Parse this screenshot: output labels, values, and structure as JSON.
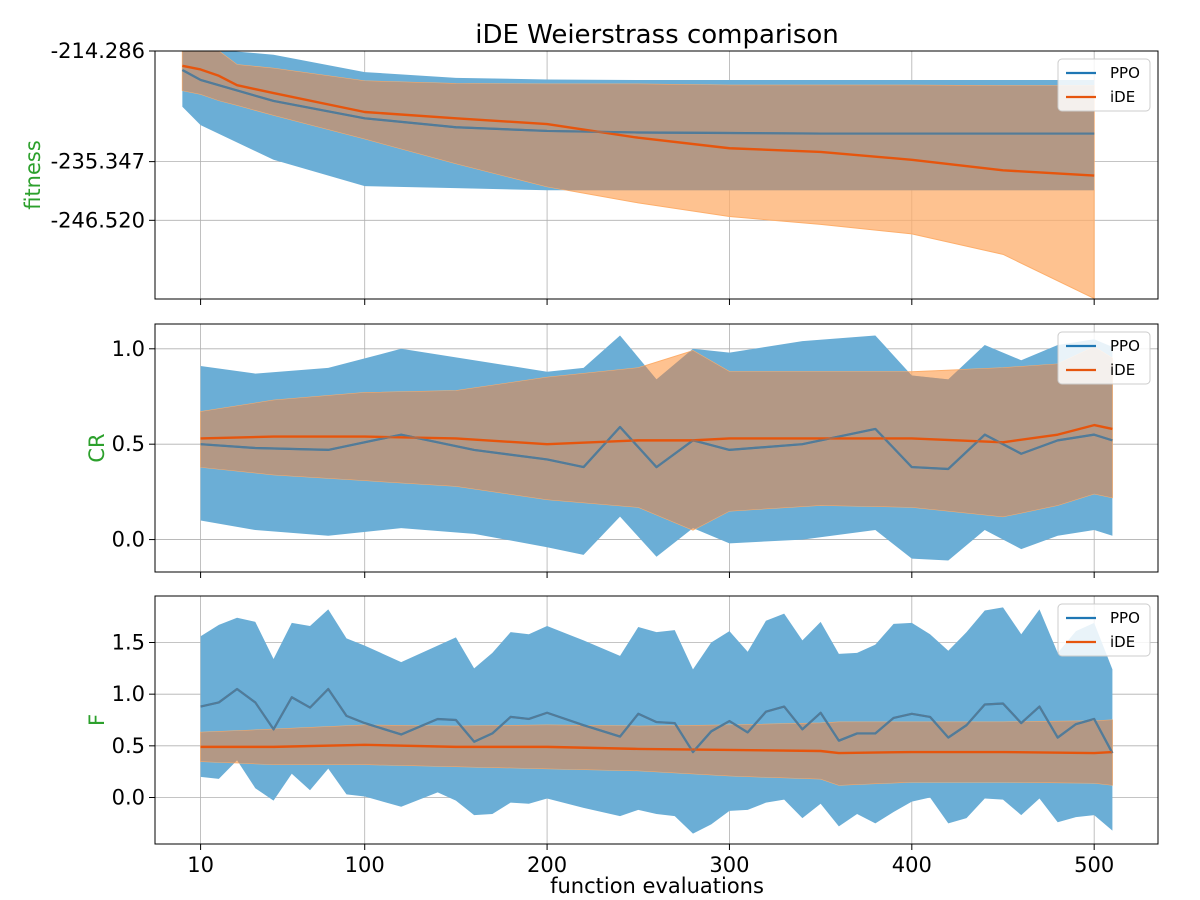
{
  "title": "iDE Weierstrass comparison",
  "xlabel": "function evaluations",
  "ylabel_color": "#2ca02c",
  "colors": {
    "PPO": "#1f77b4",
    "iDE": "#e6550d",
    "PPO_band": "#6baed6",
    "iDE_band": "#fdae6b",
    "overlap_band": "#b39885"
  },
  "x_axis": {
    "ticks": [
      10,
      100,
      200,
      300,
      400,
      500
    ],
    "tick_labels": [
      "10",
      "100",
      "200",
      "300",
      "400",
      "500"
    ]
  },
  "chart_data": [
    {
      "type": "line",
      "panel": "fitness",
      "ylabel": "fitness",
      "xlim": [
        -15,
        535
      ],
      "ylim": [
        -261.5,
        -214.286
      ],
      "yticks": [
        -214.286,
        -235.347,
        -246.52
      ],
      "ytick_labels": [
        "-214.286",
        "-235.347",
        "-246.520"
      ],
      "grid": true,
      "legend": "top-right",
      "series": [
        {
          "name": "PPO",
          "x": [
            0,
            10,
            50,
            100,
            150,
            200,
            250,
            300,
            350,
            400,
            450,
            500
          ],
          "mean": [
            -217.9,
            -219.8,
            -223.8,
            -227.1,
            -228.8,
            -229.5,
            -229.8,
            -229.9,
            -230.0,
            -230.0,
            -230.0,
            -230.0
          ],
          "lower": [
            -224.9,
            -228.4,
            -235.0,
            -240.0,
            -240.4,
            -240.8,
            -240.8,
            -240.8,
            -240.8,
            -240.8,
            -240.8,
            -240.8
          ],
          "upper": [
            -213.7,
            -213.8,
            -215.0,
            -218.3,
            -219.4,
            -219.7,
            -219.8,
            -219.8,
            -219.8,
            -219.8,
            -219.8,
            -219.8
          ]
        },
        {
          "name": "iDE",
          "x": [
            0,
            10,
            20,
            30,
            50,
            100,
            150,
            200,
            250,
            300,
            350,
            400,
            450,
            500
          ],
          "mean": [
            -217.1,
            -217.8,
            -219.0,
            -220.8,
            -222.3,
            -225.9,
            -227.1,
            -228.2,
            -230.8,
            -232.8,
            -233.5,
            -235.0,
            -237.0,
            -238.0
          ],
          "lower": [
            -221.8,
            -222.5,
            -223.7,
            -224.6,
            -226.5,
            -231.0,
            -235.7,
            -240.1,
            -243.2,
            -245.8,
            -247.3,
            -249.1,
            -253.0,
            -261.4
          ],
          "upper": [
            -212.4,
            -213.1,
            -214.3,
            -216.9,
            -217.6,
            -220.0,
            -220.5,
            -220.6,
            -220.6,
            -220.8,
            -220.8,
            -220.8,
            -220.9,
            -220.9
          ]
        }
      ]
    },
    {
      "type": "line",
      "panel": "CR",
      "ylabel": "CR",
      "xlim": [
        -15,
        535
      ],
      "ylim": [
        -0.17,
        1.13
      ],
      "yticks": [
        0.0,
        0.5,
        1.0
      ],
      "ytick_labels": [
        "0.0",
        "0.5",
        "1.0"
      ],
      "grid": true,
      "legend": "top-right",
      "series": [
        {
          "name": "PPO",
          "x": [
            10,
            40,
            80,
            120,
            160,
            200,
            220,
            240,
            260,
            280,
            300,
            340,
            380,
            400,
            420,
            440,
            460,
            480,
            500,
            510
          ],
          "mean": [
            0.5,
            0.48,
            0.47,
            0.55,
            0.47,
            0.42,
            0.38,
            0.59,
            0.38,
            0.52,
            0.47,
            0.5,
            0.58,
            0.38,
            0.37,
            0.55,
            0.45,
            0.52,
            0.55,
            0.52
          ],
          "lower": [
            0.1,
            0.05,
            0.02,
            0.06,
            0.03,
            -0.04,
            -0.08,
            0.12,
            -0.09,
            0.06,
            -0.02,
            0.0,
            0.05,
            -0.1,
            -0.11,
            0.05,
            -0.05,
            0.02,
            0.05,
            0.02
          ],
          "upper": [
            0.91,
            0.87,
            0.9,
            1.0,
            0.94,
            0.88,
            0.9,
            1.07,
            0.84,
            1.0,
            0.98,
            1.04,
            1.07,
            0.86,
            0.84,
            1.02,
            0.94,
            1.02,
            1.05,
            1.01
          ]
        },
        {
          "name": "iDE",
          "x": [
            10,
            50,
            100,
            150,
            200,
            250,
            280,
            300,
            350,
            400,
            450,
            480,
            500,
            510
          ],
          "mean": [
            0.53,
            0.54,
            0.54,
            0.53,
            0.5,
            0.52,
            0.52,
            0.53,
            0.53,
            0.53,
            0.51,
            0.55,
            0.6,
            0.58
          ],
          "lower": [
            0.38,
            0.34,
            0.31,
            0.28,
            0.21,
            0.17,
            0.05,
            0.15,
            0.18,
            0.17,
            0.12,
            0.18,
            0.24,
            0.22
          ],
          "upper": [
            0.67,
            0.73,
            0.77,
            0.78,
            0.85,
            0.9,
            0.99,
            0.88,
            0.88,
            0.88,
            0.9,
            0.92,
            1.01,
            0.95
          ]
        }
      ]
    },
    {
      "type": "line",
      "panel": "F",
      "ylabel": "F",
      "xlim": [
        -15,
        535
      ],
      "ylim": [
        -0.45,
        1.95
      ],
      "yticks": [
        0.0,
        0.5,
        1.0,
        1.5
      ],
      "ytick_labels": [
        "0.0",
        "0.5",
        "1.0",
        "1.5"
      ],
      "grid": true,
      "legend": "top-right",
      "series": [
        {
          "name": "PPO",
          "x": [
            10,
            20,
            30,
            40,
            50,
            60,
            70,
            80,
            90,
            100,
            120,
            140,
            150,
            160,
            170,
            180,
            190,
            200,
            220,
            240,
            250,
            260,
            270,
            280,
            290,
            300,
            310,
            320,
            330,
            340,
            350,
            360,
            370,
            380,
            390,
            400,
            410,
            420,
            430,
            440,
            450,
            460,
            470,
            480,
            490,
            500,
            510
          ],
          "mean": [
            0.88,
            0.92,
            1.05,
            0.92,
            0.66,
            0.97,
            0.87,
            1.05,
            0.79,
            0.72,
            0.61,
            0.76,
            0.75,
            0.54,
            0.62,
            0.78,
            0.76,
            0.82,
            0.7,
            0.59,
            0.81,
            0.73,
            0.72,
            0.44,
            0.64,
            0.74,
            0.63,
            0.83,
            0.88,
            0.66,
            0.82,
            0.55,
            0.62,
            0.62,
            0.77,
            0.81,
            0.78,
            0.58,
            0.7,
            0.9,
            0.91,
            0.72,
            0.88,
            0.58,
            0.71,
            0.76,
            0.43
          ],
          "lower": [
            0.2,
            0.18,
            0.36,
            0.09,
            -0.03,
            0.23,
            0.07,
            0.28,
            0.03,
            0.01,
            -0.09,
            0.05,
            -0.03,
            -0.17,
            -0.16,
            -0.05,
            -0.06,
            -0.01,
            -0.1,
            -0.18,
            -0.12,
            -0.16,
            -0.18,
            -0.35,
            -0.26,
            -0.13,
            -0.12,
            -0.05,
            -0.02,
            -0.2,
            -0.06,
            -0.28,
            -0.16,
            -0.25,
            -0.14,
            -0.04,
            0.0,
            -0.25,
            -0.2,
            -0.01,
            -0.02,
            -0.17,
            -0.01,
            -0.24,
            -0.19,
            -0.17,
            -0.32
          ],
          "upper": [
            1.56,
            1.67,
            1.74,
            1.7,
            1.34,
            1.69,
            1.66,
            1.82,
            1.54,
            1.47,
            1.31,
            1.47,
            1.55,
            1.25,
            1.4,
            1.6,
            1.58,
            1.66,
            1.52,
            1.37,
            1.65,
            1.6,
            1.62,
            1.24,
            1.5,
            1.61,
            1.41,
            1.71,
            1.78,
            1.52,
            1.7,
            1.39,
            1.4,
            1.48,
            1.68,
            1.69,
            1.58,
            1.42,
            1.6,
            1.81,
            1.84,
            1.58,
            1.82,
            1.4,
            1.61,
            1.69,
            1.24
          ]
        },
        {
          "name": "iDE",
          "x": [
            10,
            50,
            100,
            150,
            200,
            250,
            300,
            350,
            360,
            400,
            450,
            500,
            510
          ],
          "mean": [
            0.49,
            0.49,
            0.51,
            0.49,
            0.49,
            0.47,
            0.46,
            0.45,
            0.43,
            0.44,
            0.44,
            0.43,
            0.44
          ],
          "lower": [
            0.35,
            0.32,
            0.32,
            0.3,
            0.28,
            0.26,
            0.21,
            0.18,
            0.12,
            0.15,
            0.15,
            0.14,
            0.12
          ],
          "upper": [
            0.63,
            0.66,
            0.7,
            0.69,
            0.7,
            0.69,
            0.7,
            0.72,
            0.73,
            0.73,
            0.73,
            0.74,
            0.75
          ]
        }
      ]
    }
  ]
}
